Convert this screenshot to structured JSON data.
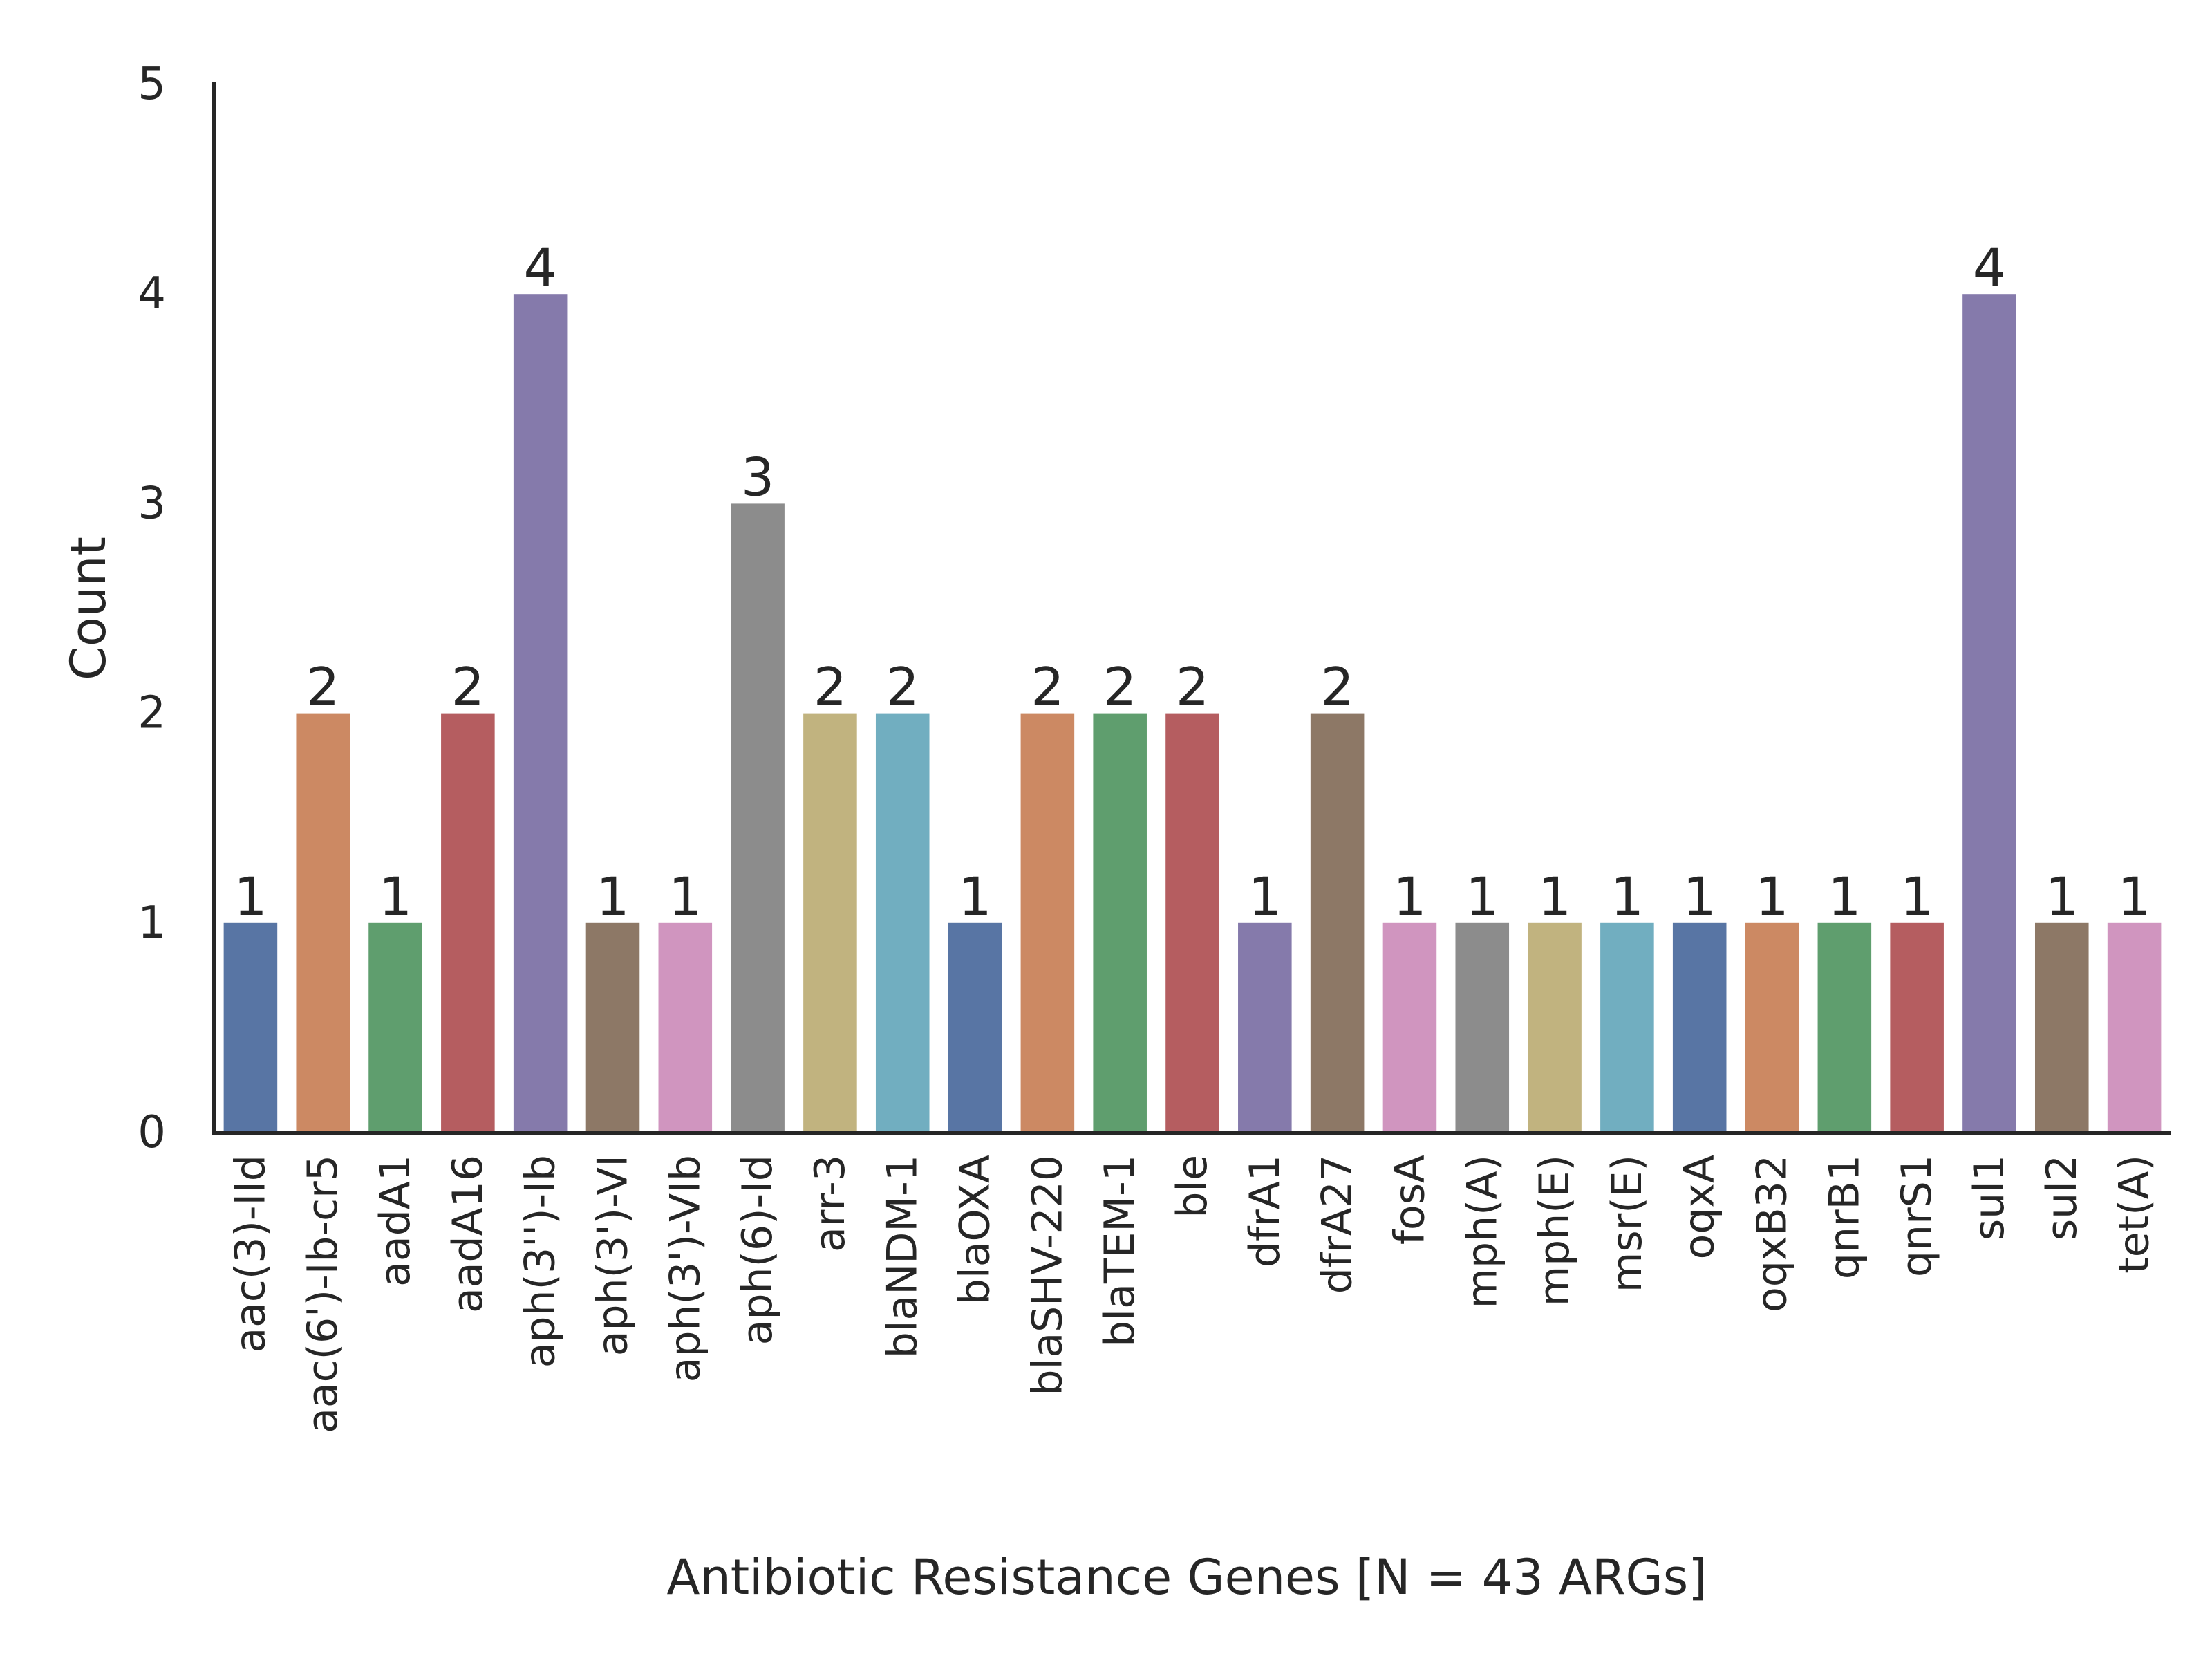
{
  "chart_data": {
    "type": "bar",
    "xlabel": "Antibiotic Resistance Genes [N = 43 ARGs]",
    "ylabel": "Count",
    "ylim": [
      0,
      5
    ],
    "yticks": [
      "0",
      "1",
      "2",
      "3",
      "4",
      "5"
    ],
    "grid": false,
    "legend": "none",
    "categories": [
      "aac(3)-IId",
      "aac(6')-Ib-cr5",
      "aadA1",
      "aadA16",
      "aph(3'')-Ib",
      "aph(3')-VI",
      "aph(3')-VIb",
      "aph(6)-Id",
      "arr-3",
      "blaNDM-1",
      "blaOXA",
      "blaSHV-220",
      "blaTEM-1",
      "ble",
      "dfrA1",
      "dfrA27",
      "fosA",
      "mph(A)",
      "mph(E)",
      "msr(E)",
      "oqxA",
      "oqxB32",
      "qnrB1",
      "qnrS1",
      "sul1",
      "sul2",
      "tet(A)"
    ],
    "values": [
      1,
      2,
      1,
      2,
      4,
      1,
      1,
      3,
      2,
      2,
      1,
      2,
      2,
      2,
      1,
      2,
      1,
      1,
      1,
      1,
      1,
      1,
      1,
      1,
      4,
      1,
      1
    ],
    "data_labels": [
      "1",
      "2",
      "1",
      "2",
      "4",
      "1",
      "1",
      "3",
      "2",
      "2",
      "1",
      "2",
      "2",
      "2",
      "1",
      "2",
      "1",
      "1",
      "1",
      "1",
      "1",
      "1",
      "1",
      "1",
      "4",
      "1",
      "1"
    ],
    "colors": [
      "#5875a4",
      "#cc8963",
      "#5f9e6e",
      "#b55d60",
      "#857aab",
      "#8d7866",
      "#d095bf",
      "#8c8c8c",
      "#c1b37f",
      "#71aec0"
    ]
  }
}
